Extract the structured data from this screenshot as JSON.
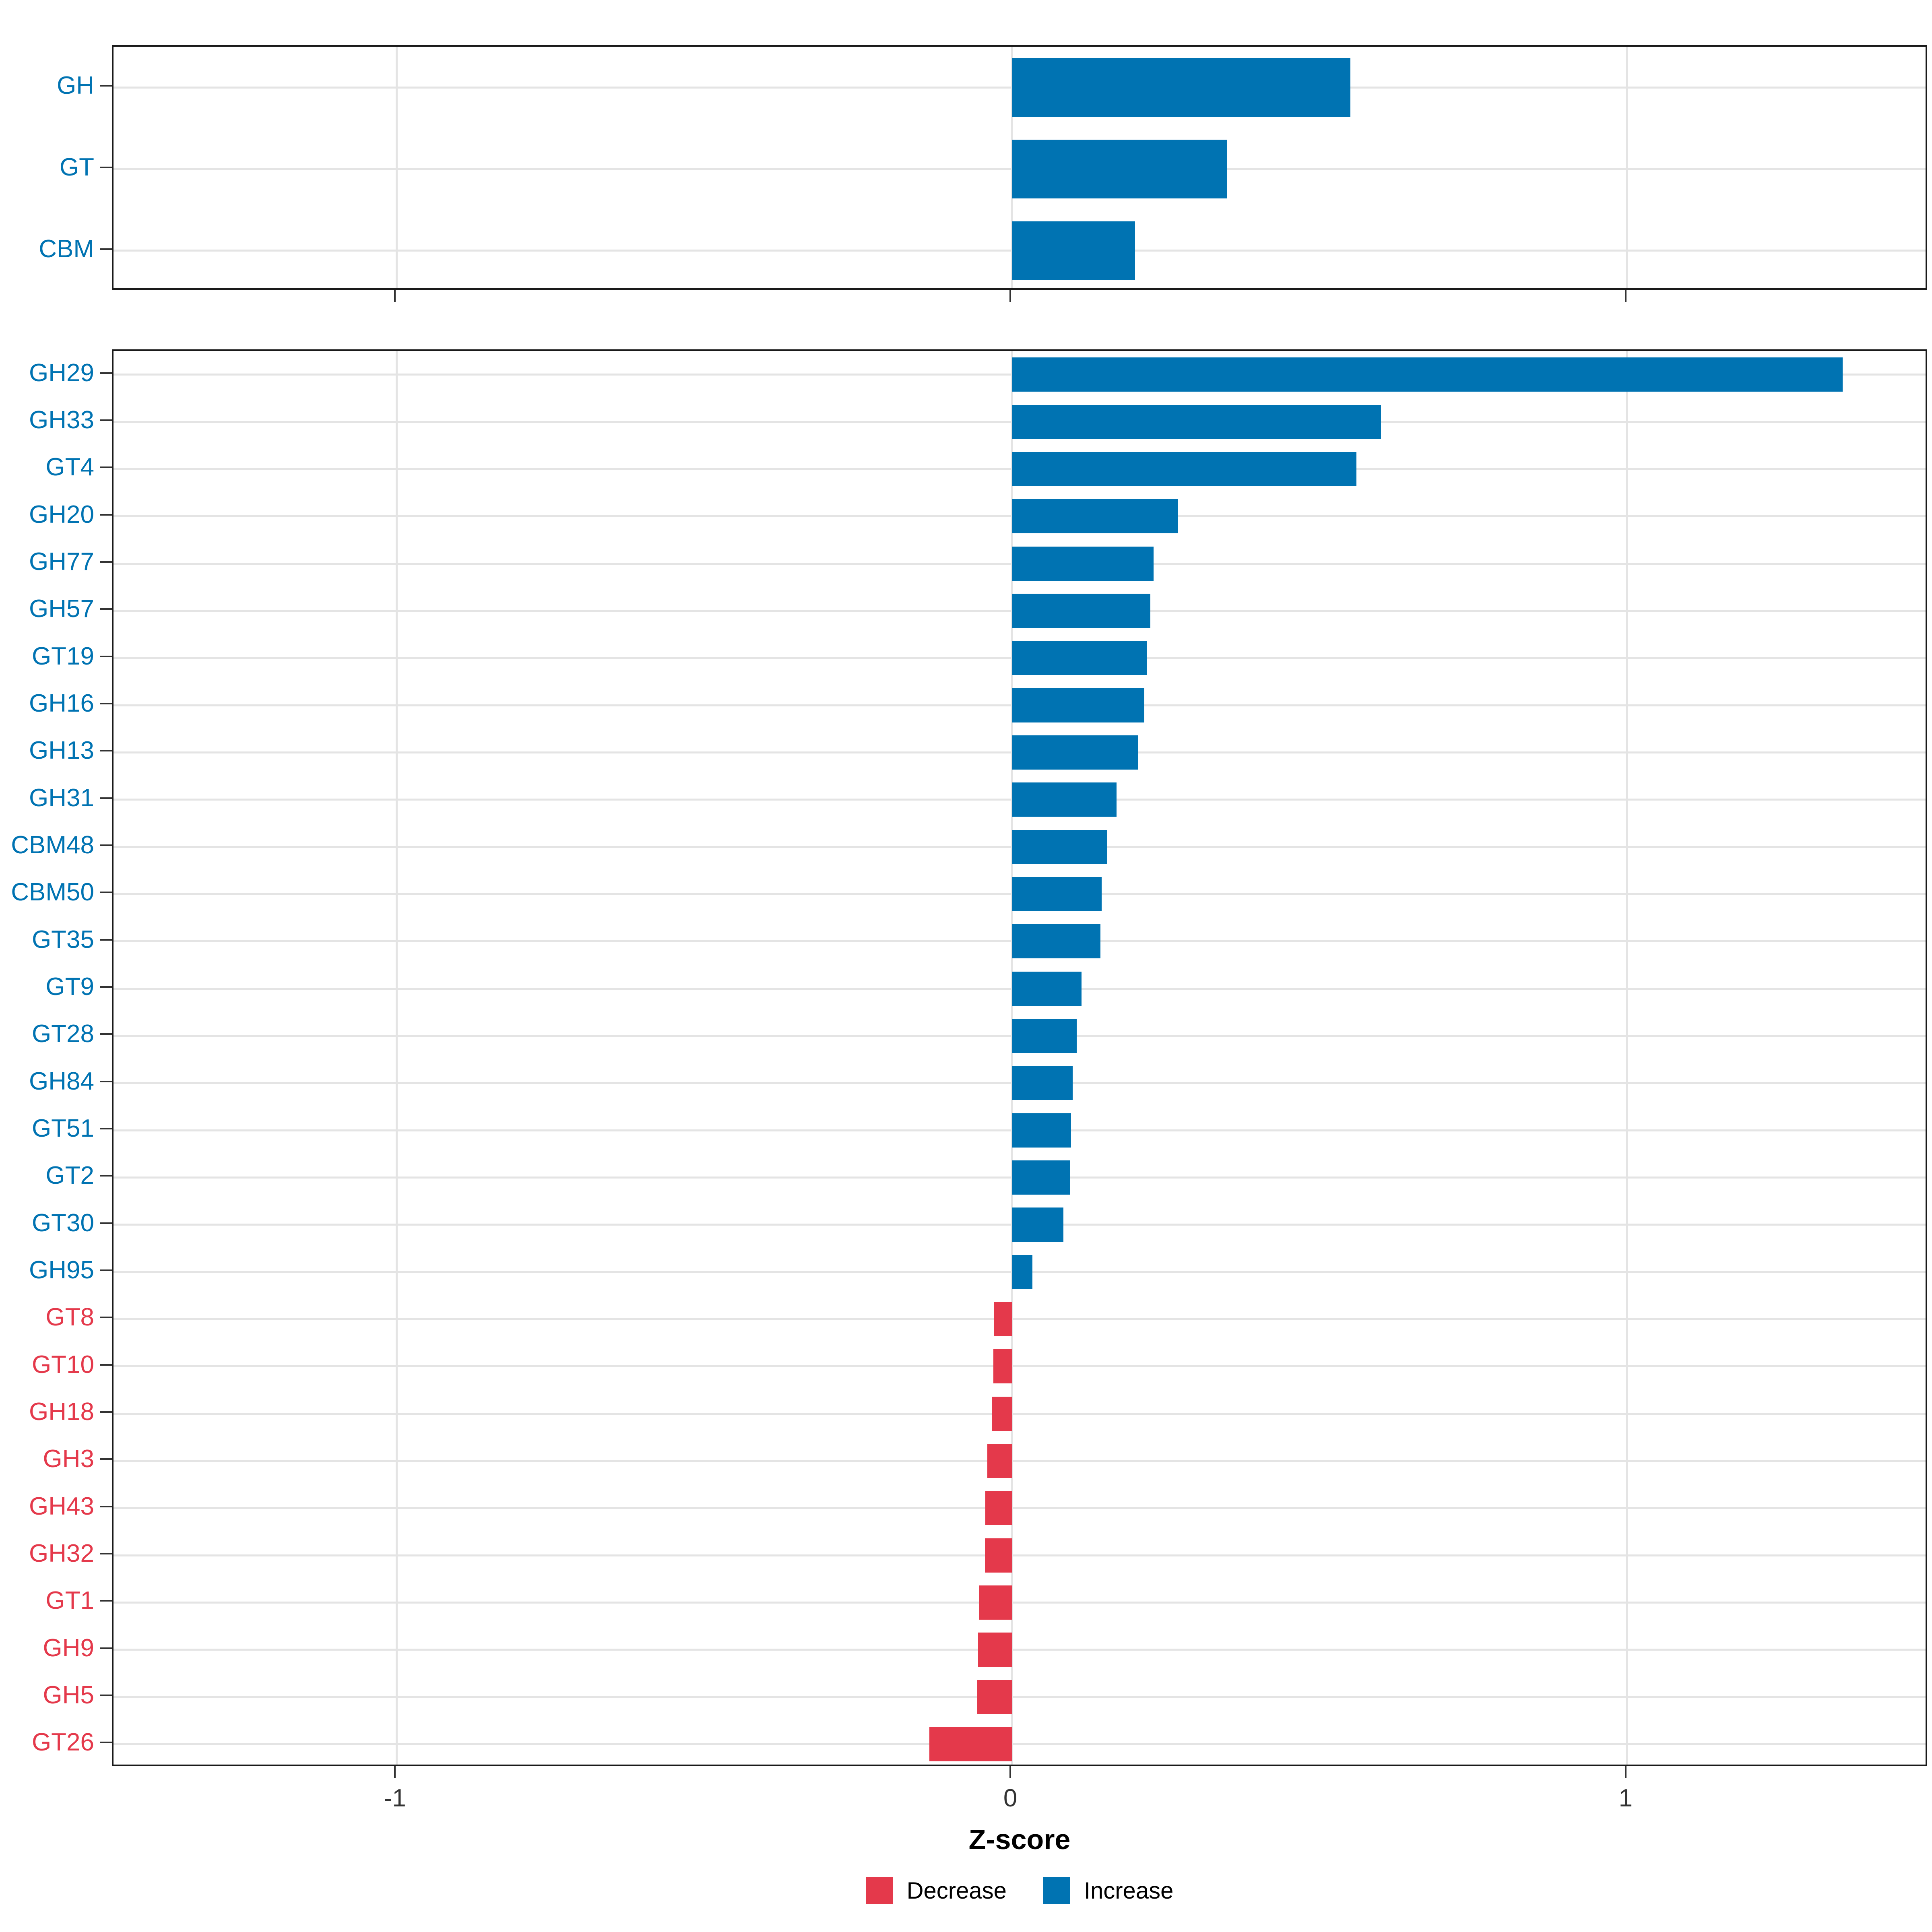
{
  "figure": {
    "background": "#FFFFFF",
    "axis": {
      "xlabel": "Z-score",
      "tick_label_color": "#333333"
    }
  },
  "chart_data": {
    "type": "bar",
    "orientation": "horizontal",
    "xlabel": "Z-score",
    "xlim": [
      -1.46,
      1.49
    ],
    "x_ticks": [
      -1,
      0,
      1
    ],
    "grid": true,
    "legend_position": "bottom",
    "colors": {
      "increase": "#0073B2",
      "decrease": "#E4394B"
    },
    "legend": [
      {
        "label": "Decrease",
        "color": "#E4394B"
      },
      {
        "label": "Increase",
        "color": "#0073B2"
      }
    ],
    "panels": [
      {
        "name": "class-summary",
        "categories": [
          "GH",
          "GT",
          "CBM"
        ],
        "values": [
          0.55,
          0.35,
          0.2
        ],
        "directions": [
          "increase",
          "increase",
          "increase"
        ]
      },
      {
        "name": "families",
        "categories": [
          "GH29",
          "GH33",
          "GT4",
          "GH20",
          "GH77",
          "GH57",
          "GT19",
          "GH16",
          "GH13",
          "GH31",
          "CBM48",
          "CBM50",
          "GT35",
          "GT9",
          "GT28",
          "GH84",
          "GT51",
          "GT2",
          "GT30",
          "GH95",
          "GT8",
          "GT10",
          "GH18",
          "GH3",
          "GH43",
          "GH32",
          "GT1",
          "GH9",
          "GH5",
          "GT26"
        ],
        "values": [
          1.35,
          0.6,
          0.56,
          0.27,
          0.23,
          0.225,
          0.22,
          0.215,
          0.205,
          0.17,
          0.155,
          0.146,
          0.144,
          0.113,
          0.105,
          0.099,
          0.096,
          0.094,
          0.084,
          0.033,
          -0.029,
          -0.03,
          -0.032,
          -0.04,
          -0.043,
          -0.044,
          -0.053,
          -0.055,
          -0.056,
          -0.134
        ],
        "directions": [
          "increase",
          "increase",
          "increase",
          "increase",
          "increase",
          "increase",
          "increase",
          "increase",
          "increase",
          "increase",
          "increase",
          "increase",
          "increase",
          "increase",
          "increase",
          "increase",
          "increase",
          "increase",
          "increase",
          "increase",
          "decrease",
          "decrease",
          "decrease",
          "decrease",
          "decrease",
          "decrease",
          "decrease",
          "decrease",
          "decrease",
          "decrease"
        ]
      }
    ]
  }
}
